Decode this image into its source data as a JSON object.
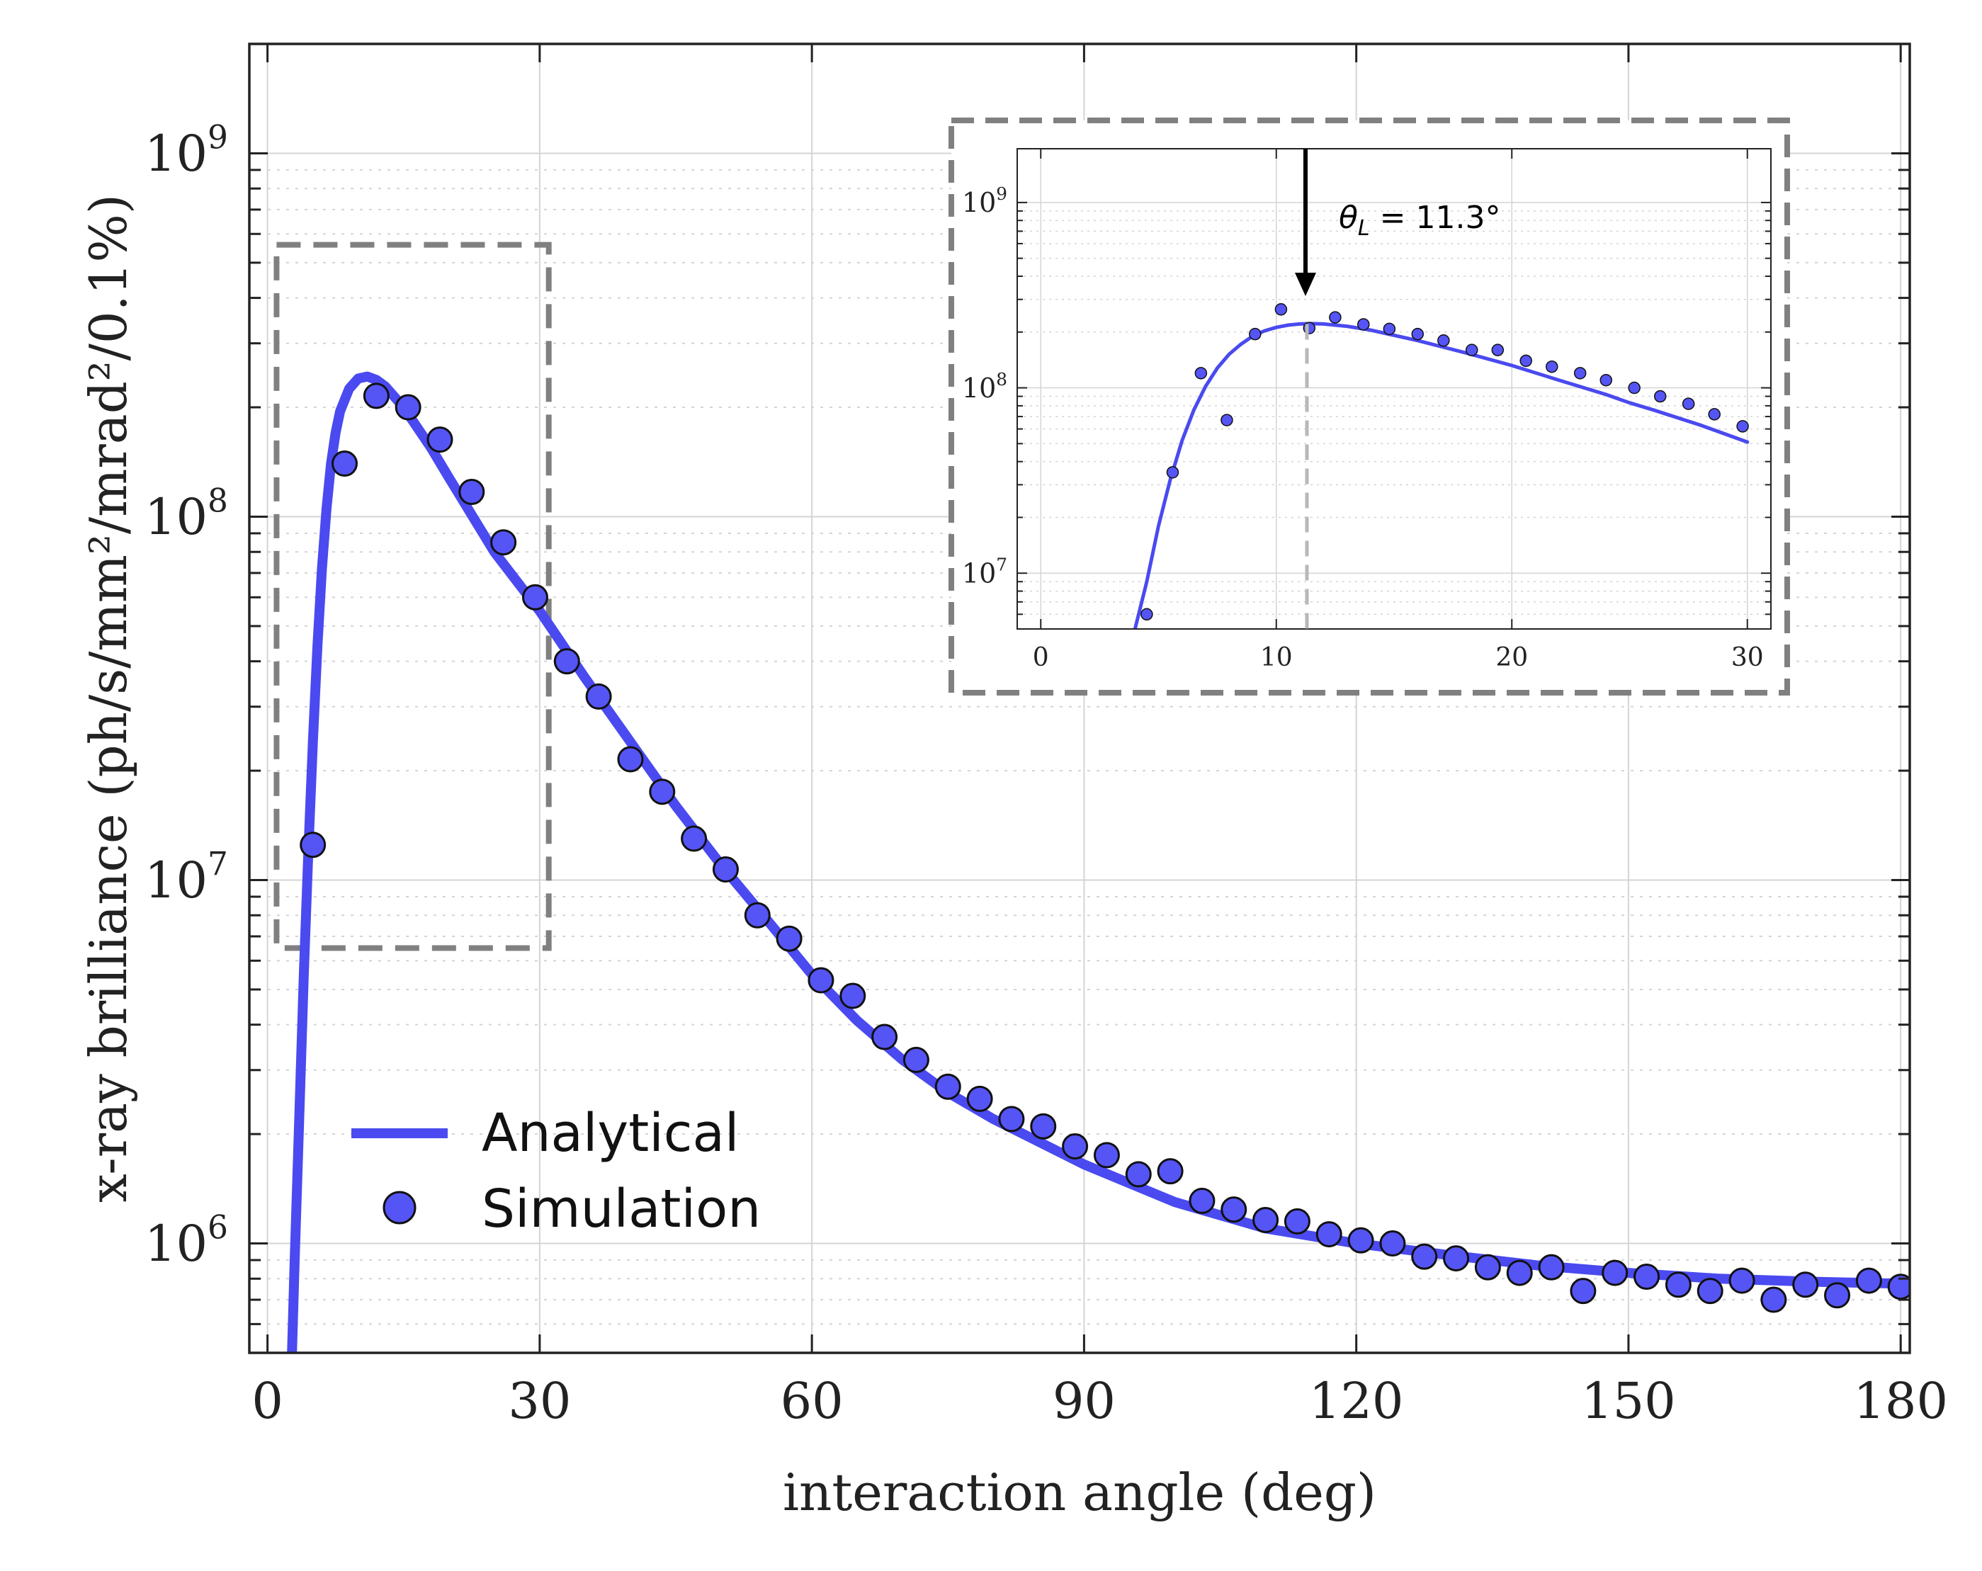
{
  "colors": {
    "series": "#4a4af0",
    "marker_fill": "#5555f5",
    "marker_edge": "#111111",
    "grid": "#d4d4d4",
    "zoom_box": "#808080",
    "axis": "#222222",
    "marker_line": "#b8b8b8",
    "arrow": "#000000"
  },
  "chart_data": [
    {
      "type": "line+scatter",
      "id": "main",
      "xlabel": "interaction angle (deg)",
      "ylabel": "x-ray brilliance (ph/s/mm²/mrad²/0.1%)",
      "xlim": [
        -2,
        181
      ],
      "ylim": [
        500000,
        2000000000
      ],
      "yscale": "log",
      "grid": true,
      "x_ticks": [
        0,
        30,
        60,
        90,
        120,
        150,
        180
      ],
      "x_tick_labels": [
        "0",
        "30",
        "60",
        "90",
        "120",
        "150",
        "180"
      ],
      "y_ticks": [
        1000000,
        10000000,
        100000000,
        1000000000
      ],
      "y_tick_labels": [
        {
          "base": "10",
          "exp": "6"
        },
        {
          "base": "10",
          "exp": "7"
        },
        {
          "base": "10",
          "exp": "8"
        },
        {
          "base": "10",
          "exp": "9"
        }
      ],
      "legend": {
        "location": "lower-left",
        "entries": [
          {
            "label": "Analytical",
            "style": "line"
          },
          {
            "label": "Simulation",
            "style": "marker"
          }
        ]
      },
      "zoom_region": {
        "x": [
          1,
          31
        ],
        "y": [
          6500000,
          560000000
        ]
      },
      "series": [
        {
          "name": "Analytical",
          "style": "line",
          "x": [
            2.7,
            3.0,
            3.5,
            4.0,
            4.5,
            5.0,
            5.5,
            6.0,
            6.5,
            7.0,
            7.5,
            8.0,
            9.0,
            10.0,
            11.0,
            12.0,
            13.0,
            15.0,
            18.0,
            20.0,
            25.0,
            30.0,
            35.0,
            40.0,
            45.0,
            50.0,
            55.0,
            60.0,
            65.0,
            70.0,
            75.0,
            80.0,
            90.0,
            100.0,
            110.0,
            120.0,
            130.0,
            140.0,
            150.0,
            160.0,
            170.0,
            180.0
          ],
          "y": [
            500000,
            900000,
            2200000,
            5500000,
            12000000,
            24000000,
            44000000,
            72000000,
            105000000,
            140000000,
            170000000,
            195000000,
            225000000,
            240000000,
            243000000,
            238000000,
            228000000,
            200000000,
            155000000,
            128000000,
            80000000,
            55000000,
            36000000,
            24000000,
            16000000,
            11000000,
            7800000,
            5500000,
            4100000,
            3200000,
            2600000,
            2200000,
            1650000,
            1300000,
            1100000,
            1000000,
            930000,
            870000,
            830000,
            800000,
            785000,
            775000
          ]
        },
        {
          "name": "Simulation",
          "style": "marker",
          "x": [
            5,
            8.5,
            12,
            15.5,
            19,
            22.5,
            26,
            29.5,
            33,
            36.5,
            40,
            43.5,
            47,
            50.5,
            54,
            57.5,
            61,
            64.5,
            68,
            71.5,
            75,
            78.5,
            82,
            85.5,
            89,
            92.5,
            96,
            99.5,
            103,
            106.5,
            110,
            113.5,
            117,
            120.5,
            124,
            127.5,
            131,
            134.5,
            138,
            141.5,
            145,
            148.5,
            152,
            155.5,
            159,
            162.5,
            166,
            169.5,
            173,
            176.5,
            180
          ],
          "y": [
            12500000,
            140000000,
            215000000,
            200000000,
            163000000,
            117000000,
            85000000,
            60000000,
            40000000,
            32000000,
            21500000,
            17500000,
            13000000,
            10700000,
            8000000,
            6900000,
            5300000,
            4800000,
            3700000,
            3200000,
            2700000,
            2500000,
            2200000,
            2100000,
            1850000,
            1750000,
            1550000,
            1580000,
            1310000,
            1240000,
            1160000,
            1150000,
            1060000,
            1020000,
            1000000,
            920000,
            910000,
            860000,
            830000,
            860000,
            740000,
            830000,
            810000,
            770000,
            740000,
            790000,
            700000,
            770000,
            720000,
            790000,
            760000
          ]
        }
      ]
    },
    {
      "type": "line+scatter",
      "id": "inset",
      "xlim": [
        -1,
        31
      ],
      "ylim": [
        5000000,
        1950000000
      ],
      "yscale": "log",
      "grid": true,
      "x_ticks": [
        0,
        10,
        20,
        30
      ],
      "x_tick_labels": [
        "0",
        "10",
        "20",
        "30"
      ],
      "y_ticks": [
        10000000,
        100000000,
        1000000000
      ],
      "y_tick_labels": [
        {
          "base": "10",
          "exp": "7"
        },
        {
          "base": "10",
          "exp": "8"
        },
        {
          "base": "10",
          "exp": "9"
        }
      ],
      "annotation": {
        "text_symbol": "θ",
        "text_sub": "L",
        "text_value": "= 11.3°",
        "x": 11.3
      },
      "series": [
        {
          "name": "Analytical",
          "style": "line",
          "x": [
            4.0,
            4.5,
            5.0,
            5.5,
            6.0,
            6.5,
            7.0,
            7.5,
            8.0,
            8.5,
            9.0,
            9.5,
            10.0,
            10.5,
            11.0,
            11.5,
            12.0,
            13.0,
            14.0,
            16.0,
            18.0,
            20.0,
            22.0,
            24.0,
            25.0,
            26.0,
            28.0,
            30.0
          ],
          "y": [
            5000000,
            9000000,
            18000000,
            32000000,
            52000000,
            76000000,
            102000000,
            128000000,
            152000000,
            172000000,
            190000000,
            203000000,
            212000000,
            218000000,
            221000000,
            222000000,
            221000000,
            215000000,
            205000000,
            180000000,
            155000000,
            132000000,
            110000000,
            92000000,
            83000000,
            76000000,
            63000000,
            51000000
          ]
        },
        {
          "name": "Simulation",
          "style": "marker",
          "x": [
            4.5,
            5.6,
            6.8,
            7.9,
            9.1,
            10.2,
            11.4,
            12.5,
            13.7,
            14.8,
            16.0,
            17.1,
            18.3,
            19.4,
            20.6,
            21.7,
            22.9,
            24.0,
            25.2,
            26.3,
            27.5,
            28.6,
            29.8
          ],
          "y": [
            6000000,
            35000000,
            120000000,
            67000000,
            195000000,
            265000000,
            210000000,
            240000000,
            220000000,
            208000000,
            195000000,
            180000000,
            160000000,
            160000000,
            140000000,
            130000000,
            120000000,
            110000000,
            100000000,
            90000000,
            82000000,
            72000000,
            62000000
          ]
        }
      ]
    }
  ]
}
